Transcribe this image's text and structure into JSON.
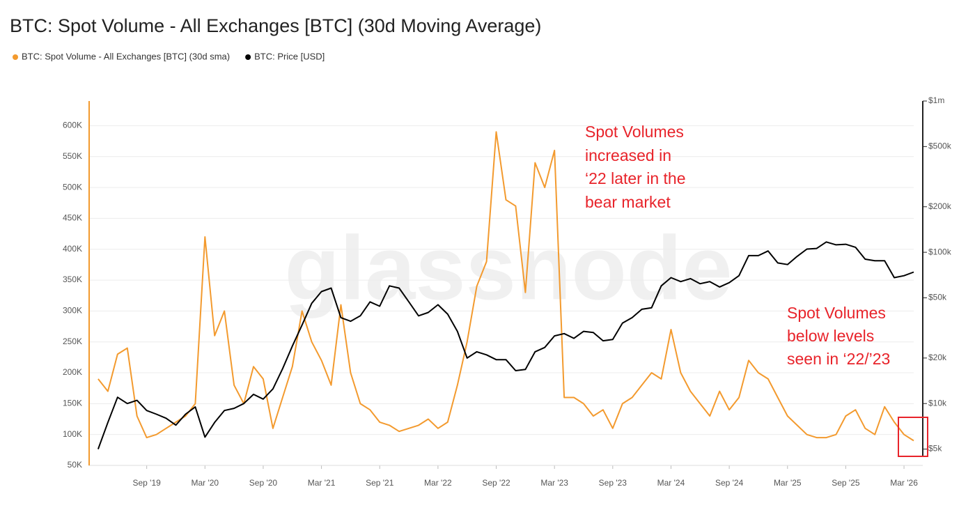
{
  "chart_data": {
    "type": "line",
    "title": "BTC: Spot Volume - All Exchanges [BTC] (30d Moving Average)",
    "watermark": "glassnode",
    "annotations": [
      {
        "lines": [
          "Spot Volumes",
          "increased in",
          "‘22 later in the",
          "bear market"
        ]
      },
      {
        "lines": [
          "Spot Volumes",
          "below levels",
          "seen in ‘22/’23"
        ]
      }
    ],
    "x": [
      "2019-04",
      "2019-05",
      "2019-06",
      "2019-07",
      "2019-08",
      "2019-09",
      "2019-10",
      "2019-11",
      "2019-12",
      "2020-01",
      "2020-02",
      "2020-03",
      "2020-04",
      "2020-05",
      "2020-06",
      "2020-07",
      "2020-08",
      "2020-09",
      "2020-10",
      "2020-11",
      "2020-12",
      "2021-01",
      "2021-02",
      "2021-03",
      "2021-04",
      "2021-05",
      "2021-06",
      "2021-07",
      "2021-08",
      "2021-09",
      "2021-10",
      "2021-11",
      "2021-12",
      "2022-01",
      "2022-02",
      "2022-03",
      "2022-04",
      "2022-05",
      "2022-06",
      "2022-07",
      "2022-08",
      "2022-09",
      "2022-10",
      "2022-11",
      "2022-12",
      "2023-01",
      "2023-02",
      "2023-03",
      "2023-04",
      "2023-05",
      "2023-06",
      "2023-07",
      "2023-08",
      "2023-09",
      "2023-10",
      "2023-11",
      "2023-12",
      "2024-01",
      "2024-02",
      "2024-03",
      "2024-04",
      "2024-05",
      "2024-06",
      "2024-07",
      "2024-08",
      "2024-09",
      "2024-10",
      "2024-11",
      "2024-12",
      "2025-01",
      "2025-02",
      "2025-03",
      "2025-04",
      "2025-05",
      "2025-06",
      "2025-07",
      "2025-08",
      "2025-09",
      "2025-10",
      "2025-11",
      "2025-12",
      "2026-01",
      "2026-02",
      "2026-03",
      "2026-04"
    ],
    "series": [
      {
        "name": "BTC: Spot Volume - All Exchanges [BTC] (30d sma)",
        "color": "#f39a2e",
        "axis": "y",
        "values": [
          190000,
          170000,
          230000,
          240000,
          130000,
          95000,
          100000,
          110000,
          120000,
          130000,
          150000,
          420000,
          260000,
          300000,
          180000,
          150000,
          210000,
          190000,
          110000,
          160000,
          210000,
          300000,
          250000,
          220000,
          180000,
          310000,
          200000,
          150000,
          140000,
          120000,
          115000,
          105000,
          110000,
          115000,
          125000,
          110000,
          120000,
          180000,
          250000,
          340000,
          380000,
          590000,
          480000,
          470000,
          330000,
          540000,
          500000,
          560000,
          160000,
          160000,
          150000,
          130000,
          140000,
          110000,
          150000,
          160000,
          180000,
          200000,
          190000,
          270000,
          200000,
          170000,
          150000,
          130000,
          170000,
          140000,
          160000,
          220000,
          200000,
          190000,
          160000,
          130000,
          115000,
          100000,
          95000,
          95000,
          100000,
          130000,
          140000,
          110000,
          100000,
          145000,
          120000,
          100000,
          90000
        ]
      },
      {
        "name": "BTC: Price [USD]",
        "color": "#000000",
        "axis": "y2",
        "values": [
          5000,
          7500,
          11000,
          10000,
          10500,
          9000,
          8500,
          8000,
          7200,
          8500,
          9500,
          6000,
          7500,
          9000,
          9300,
          10000,
          11500,
          10700,
          12500,
          17000,
          24000,
          33000,
          46000,
          55000,
          58000,
          37000,
          35000,
          38000,
          47000,
          44000,
          60000,
          58000,
          47000,
          38000,
          40000,
          45000,
          39000,
          30000,
          20000,
          22000,
          21000,
          19500,
          19500,
          16500,
          16800,
          22000,
          23500,
          28000,
          29000,
          27000,
          30000,
          29500,
          26000,
          26500,
          34000,
          37000,
          42000,
          43000,
          60000,
          68000,
          64000,
          67000,
          62000,
          64000,
          59000,
          63000,
          70000,
          95000,
          95000,
          102000,
          85000,
          83000,
          94000,
          105000,
          106000,
          117000,
          112000,
          113000,
          108000,
          90000,
          88000,
          88000,
          68000,
          70000,
          74000
        ]
      }
    ],
    "xlim": [
      "2019-03",
      "2026-04"
    ],
    "xticks": [
      {
        "value": "2019-09",
        "label": "Sep '19"
      },
      {
        "value": "2020-03",
        "label": "Mar '20"
      },
      {
        "value": "2020-09",
        "label": "Sep '20"
      },
      {
        "value": "2021-03",
        "label": "Mar '21"
      },
      {
        "value": "2021-09",
        "label": "Sep '21"
      },
      {
        "value": "2022-03",
        "label": "Mar '22"
      },
      {
        "value": "2022-09",
        "label": "Sep '22"
      },
      {
        "value": "2023-03",
        "label": "Mar '23"
      },
      {
        "value": "2023-09",
        "label": "Sep '23"
      },
      {
        "value": "2024-03",
        "label": "Mar '24"
      },
      {
        "value": "2024-09",
        "label": "Sep '24"
      },
      {
        "value": "2025-03",
        "label": "Mar '25"
      },
      {
        "value": "2025-09",
        "label": "Sep '25"
      },
      {
        "value": "2026-03",
        "label": "Mar '26"
      }
    ],
    "ylim": [
      50000,
      640000
    ],
    "yticks": [
      {
        "value": 50000,
        "label": "50K"
      },
      {
        "value": 100000,
        "label": "100K"
      },
      {
        "value": 150000,
        "label": "150K"
      },
      {
        "value": 200000,
        "label": "200K"
      },
      {
        "value": 250000,
        "label": "250K"
      },
      {
        "value": 300000,
        "label": "300K"
      },
      {
        "value": 350000,
        "label": "350K"
      },
      {
        "value": 400000,
        "label": "400K"
      },
      {
        "value": 450000,
        "label": "450K"
      },
      {
        "value": 500000,
        "label": "500K"
      },
      {
        "value": 550000,
        "label": "550K"
      },
      {
        "value": 600000,
        "label": "600K"
      }
    ],
    "y2lim": [
      3900,
      1000000
    ],
    "y2scale": "log",
    "y2ticks": [
      {
        "value": 5000,
        "label": "$5k"
      },
      {
        "value": 10000,
        "label": "$10k"
      },
      {
        "value": 20000,
        "label": "$20k"
      },
      {
        "value": 50000,
        "label": "$50k"
      },
      {
        "value": 100000,
        "label": "$100k"
      },
      {
        "value": 200000,
        "label": "$200k"
      },
      {
        "value": 500000,
        "label": "$500k"
      },
      {
        "value": 1000000,
        "label": "$1m"
      }
    ],
    "grid": true,
    "legend": "top-left"
  }
}
